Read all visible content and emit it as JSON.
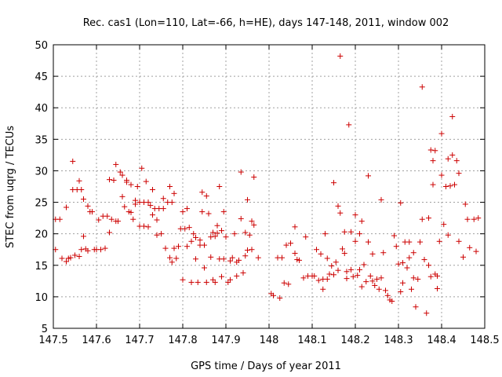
{
  "chart_data": {
    "type": "scatter",
    "title": "Rec. cas1 (Lon=110, Lat=-66, h=HE), days 147-148, 2011, window 002",
    "xlabel": "GPS time / Days of year 2011",
    "ylabel": "STEC from uqrg / TECUs",
    "xlim": [
      147.5,
      148.5
    ],
    "ylim": [
      5,
      50
    ],
    "grid": true,
    "marker": "+",
    "color": "#cc0000",
    "x_ticks": [
      "147.5",
      "147.6",
      "147.7",
      "147.8",
      "147.9",
      "148",
      "148.1",
      "148.2",
      "148.3",
      "148.4",
      "148.5"
    ],
    "y_ticks": [
      "5",
      "10",
      "15",
      "20",
      "25",
      "30",
      "35",
      "40",
      "45",
      "50"
    ],
    "points": [
      [
        147.505,
        17.5
      ],
      [
        147.505,
        22.3
      ],
      [
        147.515,
        22.3
      ],
      [
        147.52,
        16.1
      ],
      [
        147.53,
        24.2
      ],
      [
        147.53,
        15.6
      ],
      [
        147.535,
        16.1
      ],
      [
        147.54,
        16.2
      ],
      [
        147.545,
        31.5
      ],
      [
        147.545,
        27.0
      ],
      [
        147.55,
        16.6
      ],
      [
        147.555,
        27.0
      ],
      [
        147.56,
        28.4
      ],
      [
        147.56,
        16.4
      ],
      [
        147.565,
        27.0
      ],
      [
        147.565,
        17.5
      ],
      [
        147.57,
        19.6
      ],
      [
        147.57,
        25.5
      ],
      [
        147.575,
        17.6
      ],
      [
        147.58,
        24.4
      ],
      [
        147.58,
        17.3
      ],
      [
        147.585,
        23.5
      ],
      [
        147.59,
        23.5
      ],
      [
        147.595,
        17.5
      ],
      [
        147.6,
        17.5
      ],
      [
        147.605,
        22.2
      ],
      [
        147.61,
        17.5
      ],
      [
        147.615,
        22.8
      ],
      [
        147.62,
        17.7
      ],
      [
        147.625,
        22.8
      ],
      [
        147.63,
        20.2
      ],
      [
        147.63,
        28.6
      ],
      [
        147.635,
        22.3
      ],
      [
        147.64,
        28.5
      ],
      [
        147.645,
        31.0
      ],
      [
        147.645,
        22.0
      ],
      [
        147.65,
        22.0
      ],
      [
        147.655,
        29.8
      ],
      [
        147.66,
        29.3
      ],
      [
        147.66,
        25.9
      ],
      [
        147.665,
        24.3
      ],
      [
        147.67,
        28.5
      ],
      [
        147.67,
        28.2
      ],
      [
        147.675,
        23.5
      ],
      [
        147.68,
        23.4
      ],
      [
        147.68,
        27.8
      ],
      [
        147.685,
        22.3
      ],
      [
        147.69,
        24.7
      ],
      [
        147.69,
        25.3
      ],
      [
        147.695,
        27.5
      ],
      [
        147.7,
        21.2
      ],
      [
        147.7,
        25.0
      ],
      [
        147.705,
        30.4
      ],
      [
        147.71,
        25.0
      ],
      [
        147.71,
        21.2
      ],
      [
        147.715,
        28.3
      ],
      [
        147.72,
        21.1
      ],
      [
        147.72,
        25.0
      ],
      [
        147.725,
        24.5
      ],
      [
        147.73,
        27.0
      ],
      [
        147.73,
        23.0
      ],
      [
        147.735,
        24.0
      ],
      [
        147.74,
        22.2
      ],
      [
        147.74,
        19.8
      ],
      [
        147.745,
        24.0
      ],
      [
        147.75,
        20.0
      ],
      [
        147.755,
        25.6
      ],
      [
        147.755,
        24.0
      ],
      [
        147.76,
        17.7
      ],
      [
        147.765,
        25.0
      ],
      [
        147.77,
        27.5
      ],
      [
        147.77,
        16.2
      ],
      [
        147.775,
        15.5
      ],
      [
        147.775,
        25.0
      ],
      [
        147.78,
        17.7
      ],
      [
        147.78,
        26.4
      ],
      [
        147.785,
        16.1
      ],
      [
        147.79,
        18.0
      ],
      [
        147.795,
        20.8
      ],
      [
        147.8,
        23.5
      ],
      [
        147.8,
        12.7
      ],
      [
        147.805,
        20.8
      ],
      [
        147.81,
        18.0
      ],
      [
        147.81,
        24.0
      ],
      [
        147.815,
        21.0
      ],
      [
        147.82,
        12.3
      ],
      [
        147.82,
        18.8
      ],
      [
        147.825,
        20.0
      ],
      [
        147.83,
        16.0
      ],
      [
        147.83,
        19.4
      ],
      [
        147.835,
        12.3
      ],
      [
        147.84,
        19.0
      ],
      [
        147.84,
        18.2
      ],
      [
        147.845,
        26.6
      ],
      [
        147.845,
        23.5
      ],
      [
        147.85,
        14.6
      ],
      [
        147.85,
        18.2
      ],
      [
        147.855,
        26.0
      ],
      [
        147.855,
        12.3
      ],
      [
        147.86,
        23.2
      ],
      [
        147.865,
        19.5
      ],
      [
        147.865,
        16.3
      ],
      [
        147.87,
        20.2
      ],
      [
        147.87,
        12.7
      ],
      [
        147.875,
        12.3
      ],
      [
        147.875,
        19.6
      ],
      [
        147.88,
        20.1
      ],
      [
        147.88,
        21.3
      ],
      [
        147.885,
        27.5
      ],
      [
        147.885,
        16.0
      ],
      [
        147.89,
        13.2
      ],
      [
        147.89,
        20.5
      ],
      [
        147.895,
        16.0
      ],
      [
        147.895,
        23.5
      ],
      [
        147.9,
        19.5
      ],
      [
        147.905,
        12.3
      ],
      [
        147.91,
        15.7
      ],
      [
        147.91,
        12.7
      ],
      [
        147.915,
        16.2
      ],
      [
        147.92,
        20.0
      ],
      [
        147.925,
        15.5
      ],
      [
        147.925,
        13.3
      ],
      [
        147.93,
        15.8
      ],
      [
        147.935,
        29.8
      ],
      [
        147.935,
        22.4
      ],
      [
        147.94,
        13.8
      ],
      [
        147.945,
        16.5
      ],
      [
        147.945,
        20.2
      ],
      [
        147.95,
        25.4
      ],
      [
        147.95,
        17.4
      ],
      [
        147.955,
        19.8
      ],
      [
        147.96,
        22.0
      ],
      [
        147.96,
        17.5
      ],
      [
        147.965,
        29.0
      ],
      [
        147.965,
        21.4
      ],
      [
        147.975,
        16.2
      ],
      [
        148.005,
        10.5
      ],
      [
        148.01,
        10.2
      ],
      [
        148.02,
        16.2
      ],
      [
        148.025,
        9.8
      ],
      [
        148.03,
        16.2
      ],
      [
        148.035,
        12.2
      ],
      [
        148.04,
        18.2
      ],
      [
        148.045,
        12.0
      ],
      [
        148.05,
        18.5
      ],
      [
        148.06,
        21.1
      ],
      [
        148.06,
        16.9
      ],
      [
        148.065,
        15.9
      ],
      [
        148.07,
        15.8
      ],
      [
        148.08,
        13.0
      ],
      [
        148.085,
        19.5
      ],
      [
        148.09,
        13.3
      ],
      [
        148.1,
        13.3
      ],
      [
        148.105,
        13.3
      ],
      [
        148.11,
        17.5
      ],
      [
        148.115,
        12.6
      ],
      [
        148.12,
        16.8
      ],
      [
        148.125,
        11.2
      ],
      [
        148.125,
        12.8
      ],
      [
        148.13,
        20.0
      ],
      [
        148.135,
        16.1
      ],
      [
        148.135,
        12.8
      ],
      [
        148.14,
        13.6
      ],
      [
        148.145,
        14.9
      ],
      [
        148.15,
        13.5
      ],
      [
        148.15,
        28.1
      ],
      [
        148.155,
        15.5
      ],
      [
        148.16,
        14.2
      ],
      [
        148.16,
        24.4
      ],
      [
        148.165,
        23.3
      ],
      [
        148.165,
        48.2
      ],
      [
        148.17,
        17.6
      ],
      [
        148.175,
        20.3
      ],
      [
        148.175,
        16.9
      ],
      [
        148.18,
        12.9
      ],
      [
        148.18,
        14.0
      ],
      [
        148.185,
        37.3
      ],
      [
        148.19,
        20.3
      ],
      [
        148.19,
        14.3
      ],
      [
        148.195,
        13.2
      ],
      [
        148.2,
        23.0
      ],
      [
        148.2,
        18.8
      ],
      [
        148.205,
        13.4
      ],
      [
        148.21,
        20.0
      ],
      [
        148.21,
        14.3
      ],
      [
        148.215,
        11.6
      ],
      [
        148.215,
        22.0
      ],
      [
        148.22,
        15.1
      ],
      [
        148.225,
        12.4
      ],
      [
        148.23,
        18.7
      ],
      [
        148.23,
        29.2
      ],
      [
        148.235,
        13.3
      ],
      [
        148.24,
        12.5
      ],
      [
        148.24,
        16.8
      ],
      [
        148.245,
        11.8
      ],
      [
        148.25,
        12.8
      ],
      [
        148.255,
        11.2
      ],
      [
        148.26,
        13.0
      ],
      [
        148.26,
        25.4
      ],
      [
        148.265,
        17.0
      ],
      [
        148.27,
        11.0
      ],
      [
        148.275,
        10.2
      ],
      [
        148.28,
        9.5
      ],
      [
        148.285,
        9.3
      ],
      [
        148.29,
        19.7
      ],
      [
        148.295,
        18.0
      ],
      [
        148.3,
        15.2
      ],
      [
        148.305,
        24.9
      ],
      [
        148.305,
        10.8
      ],
      [
        148.31,
        15.4
      ],
      [
        148.31,
        12.2
      ],
      [
        148.315,
        18.7
      ],
      [
        148.32,
        14.6
      ],
      [
        148.325,
        18.7
      ],
      [
        148.325,
        16.2
      ],
      [
        148.33,
        11.2
      ],
      [
        148.335,
        13.0
      ],
      [
        148.335,
        17.0
      ],
      [
        148.34,
        8.4
      ],
      [
        148.345,
        12.8
      ],
      [
        148.35,
        18.7
      ],
      [
        148.355,
        43.3
      ],
      [
        148.355,
        22.3
      ],
      [
        148.36,
        15.9
      ],
      [
        148.365,
        7.4
      ],
      [
        148.37,
        22.5
      ],
      [
        148.37,
        15.0
      ],
      [
        148.375,
        33.3
      ],
      [
        148.375,
        13.2
      ],
      [
        148.38,
        31.6
      ],
      [
        148.38,
        27.8
      ],
      [
        148.385,
        33.2
      ],
      [
        148.385,
        13.6
      ],
      [
        148.39,
        11.3
      ],
      [
        148.39,
        13.3
      ],
      [
        148.395,
        18.8
      ],
      [
        148.4,
        35.9
      ],
      [
        148.4,
        29.3
      ],
      [
        148.405,
        21.5
      ],
      [
        148.41,
        27.5
      ],
      [
        148.415,
        19.8
      ],
      [
        148.415,
        31.9
      ],
      [
        148.42,
        27.6
      ],
      [
        148.425,
        38.6
      ],
      [
        148.425,
        32.5
      ],
      [
        148.43,
        27.8
      ],
      [
        148.435,
        31.6
      ],
      [
        148.44,
        29.6
      ],
      [
        148.44,
        18.8
      ],
      [
        148.45,
        16.3
      ],
      [
        148.455,
        24.7
      ],
      [
        148.46,
        22.3
      ],
      [
        148.465,
        17.8
      ],
      [
        148.475,
        22.3
      ],
      [
        148.48,
        17.2
      ],
      [
        148.485,
        22.5
      ]
    ]
  }
}
